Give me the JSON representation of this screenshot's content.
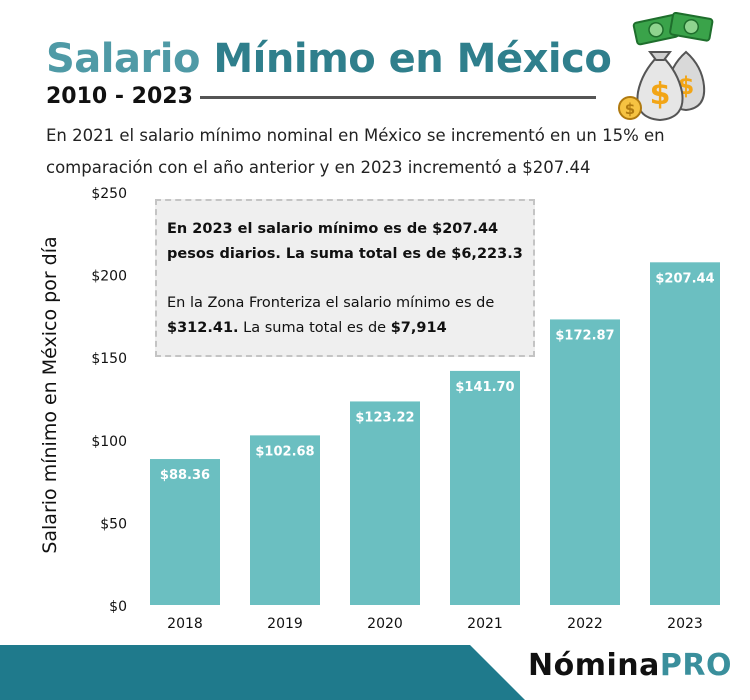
{
  "header": {
    "title_part1": "Salario",
    "title_part2": "Mínimo en México",
    "subtitle": "2010 - 2023",
    "description": "En 2021 el salario mínimo nominal en México se incrementó en un 15% en comparación con el año anterior y en 2023 incrementó a $207.44"
  },
  "callout": {
    "line1": "En 2023 el salario mínimo es de $207.44 pesos diarios. La suma total es de $6,223.3",
    "line2_prefix": "En la Zona Fronteriza el salario mínimo es de ",
    "line2_value": "$312.41.",
    "line2_suffix": " La suma total es de ",
    "line2_total": "$7,914"
  },
  "brand": {
    "part1": "Nómina",
    "part2": "PRO"
  },
  "icons": {
    "header_icon": "money-bag-icon"
  },
  "colors": {
    "bar": "#6bbfc1",
    "title_light": "#4f9aa6",
    "title_dark": "#2f7f8c",
    "footer": "#1f7a8c",
    "brand_accent": "#3a8f9c"
  },
  "chart_data": {
    "type": "bar",
    "title": "Salario Mínimo en México",
    "xlabel": "",
    "ylabel": "Salario mínimo en México por día",
    "categories": [
      "2018",
      "2019",
      "2020",
      "2021",
      "2022",
      "2023"
    ],
    "values": [
      88.36,
      102.68,
      123.22,
      141.7,
      172.87,
      207.44
    ],
    "data_labels": [
      "$88.36",
      "$102.68",
      "$123.22",
      "$141.70",
      "$172.87",
      "$207.44"
    ],
    "yticks": [
      0,
      50,
      100,
      150,
      200,
      250
    ],
    "ytick_labels": [
      "$0",
      "$50",
      "$100",
      "$150",
      "$200",
      "$250"
    ],
    "ylim": [
      0,
      250
    ],
    "grid": false
  }
}
